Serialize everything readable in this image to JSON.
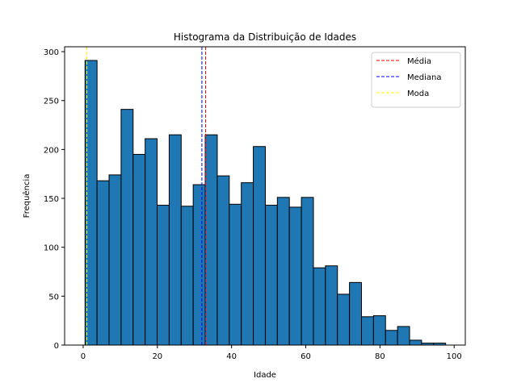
{
  "chart_data": {
    "type": "bar",
    "title": "Histograma da Distribuição de Idades",
    "xlabel": "Idade",
    "ylabel": "Frequência",
    "xlim": [
      -5,
      103
    ],
    "ylim": [
      0,
      305
    ],
    "xticks": [
      0,
      20,
      40,
      60,
      80,
      100
    ],
    "yticks": [
      0,
      50,
      100,
      150,
      200,
      250,
      300
    ],
    "bins_start": 0.5,
    "bin_width": 3.24,
    "values": [
      291,
      168,
      174,
      241,
      195,
      211,
      143,
      215,
      142,
      164,
      215,
      173,
      144,
      166,
      203,
      143,
      151,
      141,
      151,
      79,
      81,
      52,
      64,
      29,
      30,
      15,
      19,
      5,
      2,
      2
    ],
    "bar_color": "#1f77b4",
    "bar_edge_color": "#000000",
    "grid": false,
    "legend_position": "top-right",
    "reference_lines": [
      {
        "name": "Média",
        "x": 33.0,
        "color": "#ff0000"
      },
      {
        "name": "Mediana",
        "x": 32.0,
        "color": "#0000ff"
      },
      {
        "name": "Moda",
        "x": 1.0,
        "color": "#ffff00"
      }
    ]
  }
}
